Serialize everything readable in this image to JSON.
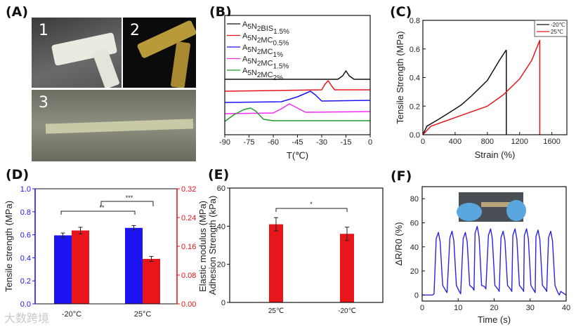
{
  "panel_labels": [
    "(A)",
    "(B)",
    "(C)",
    "(D)",
    "(E)",
    "(F)"
  ],
  "photos": {
    "numbers": [
      "1",
      "2",
      "3"
    ]
  },
  "watermark": "大数跨境",
  "colors": {
    "black": "#111111",
    "red": "#e8151b",
    "blue": "#1c14f0",
    "magenta": "#f02cf0",
    "green": "#1f9a2a",
    "dblue": "#2a23e0"
  },
  "chart_data": [
    {
      "id": "B",
      "type": "line",
      "title": "",
      "xlabel": "T(℃)",
      "ylabel": "",
      "xlim": [
        -90,
        0
      ],
      "ylim": [
        0,
        17
      ],
      "xticks": [
        -90,
        -75,
        -60,
        -45,
        -30,
        -15,
        0
      ],
      "legend_position": "top-left",
      "series": [
        {
          "name": "A5N2BIS1.5%",
          "base": "A5N2BIS",
          "sub": "1.5%",
          "color": "black",
          "points": [
            [
              -90,
              7.9
            ],
            [
              -20,
              7.9
            ],
            [
              -17,
              8.4
            ],
            [
              -15,
              9.1
            ],
            [
              -13,
              8.4
            ],
            [
              -10,
              7.9
            ],
            [
              0,
              7.9
            ]
          ]
        },
        {
          "name": "A5N2MC0.5%",
          "base": "A5N2MC",
          "sub": "0.5%",
          "color": "red",
          "points": [
            [
              -90,
              6.2
            ],
            [
              -30,
              6.4
            ],
            [
              -28,
              7.2
            ],
            [
              -26,
              7.7
            ],
            [
              -24,
              7.0
            ],
            [
              -22,
              6.4
            ],
            [
              0,
              6.4
            ]
          ]
        },
        {
          "name": "A5N2MC1%",
          "base": "A5N2MC",
          "sub": "1%",
          "color": "blue",
          "points": [
            [
              -90,
              4.6
            ],
            [
              -55,
              4.7
            ],
            [
              -45,
              5.4
            ],
            [
              -37,
              6.2
            ],
            [
              -34,
              5.7
            ],
            [
              -30,
              4.8
            ],
            [
              0,
              4.9
            ]
          ]
        },
        {
          "name": "A5N2MC1.5%",
          "base": "A5N2MC",
          "sub": "1.5%",
          "color": "magenta",
          "points": [
            [
              -90,
              3.0
            ],
            [
              -60,
              3.1
            ],
            [
              -55,
              3.7
            ],
            [
              -50,
              4.4
            ],
            [
              -45,
              3.8
            ],
            [
              -40,
              3.2
            ],
            [
              0,
              3.3
            ]
          ]
        },
        {
          "name": "A5N2MC2%",
          "base": "A5N2MC",
          "sub": "2%",
          "color": "green",
          "points": [
            [
              -90,
              1.9
            ],
            [
              -84,
              2.9
            ],
            [
              -78,
              3.6
            ],
            [
              -74,
              3.8
            ],
            [
              -71,
              3.4
            ],
            [
              -66,
              2.2
            ],
            [
              -60,
              2.0
            ],
            [
              0,
              2.0
            ]
          ]
        }
      ]
    },
    {
      "id": "C",
      "type": "line",
      "xlabel": "Strain (%)",
      "ylabel": "Tensile Strength (MPa)",
      "xlim": [
        0,
        1786
      ],
      "ylim": [
        0,
        0.8
      ],
      "xticks": [
        0,
        400,
        800,
        1200,
        1600
      ],
      "yticks": [
        0.0,
        0.2,
        0.4,
        0.6,
        0.8
      ],
      "legend_position": "top-right",
      "series": [
        {
          "name": "-20℃",
          "color": "black",
          "points": [
            [
              0,
              0
            ],
            [
              50,
              0.06
            ],
            [
              200,
              0.11
            ],
            [
              400,
              0.18
            ],
            [
              480,
              0.21
            ],
            [
              600,
              0.27
            ],
            [
              800,
              0.38
            ],
            [
              950,
              0.52
            ],
            [
              1030,
              0.59
            ],
            [
              1035,
              0.59
            ],
            [
              1035,
              0
            ]
          ]
        },
        {
          "name": "25℃",
          "color": "red",
          "points": [
            [
              0,
              0
            ],
            [
              100,
              0.06
            ],
            [
              400,
              0.12
            ],
            [
              800,
              0.2
            ],
            [
              1000,
              0.28
            ],
            [
              1200,
              0.39
            ],
            [
              1350,
              0.52
            ],
            [
              1450,
              0.66
            ],
            [
              1450,
              0
            ]
          ]
        }
      ]
    },
    {
      "id": "D",
      "type": "bar",
      "categories": [
        "-20°C",
        "25°C"
      ],
      "ylabel": "Tensile strength (MPa)",
      "ylabel_right": "Elastic modulus (MPa)",
      "ylim": [
        0,
        1.0
      ],
      "ylim_right": [
        0,
        0.32
      ],
      "yticks": [
        0.0,
        0.2,
        0.4,
        0.6,
        0.8,
        1.0
      ],
      "yticks_right": [
        0.0,
        0.08,
        0.16,
        0.24,
        0.32
      ],
      "series": [
        {
          "name": "Tensile strength",
          "color": "blue",
          "axis": "left",
          "values": [
            0.595,
            0.66
          ],
          "errors": [
            0.02,
            0.02
          ]
        },
        {
          "name": "Elastic modulus",
          "color": "red",
          "axis": "right",
          "values": [
            0.204,
            0.125
          ],
          "errors": [
            0.009,
            0.007
          ]
        }
      ],
      "significance": [
        {
          "label": "**",
          "between": "-20°C tensile vs 25°C tensile"
        },
        {
          "label": "***",
          "between": "-20°C modulus vs 25°C modulus"
        }
      ]
    },
    {
      "id": "E",
      "type": "bar",
      "categories": [
        "25℃",
        "-20℃"
      ],
      "ylabel": "Adhesion Strength (kPa)",
      "ylim": [
        0,
        60
      ],
      "yticks": [
        0,
        20,
        40,
        60
      ],
      "series": [
        {
          "name": "Adhesion Strength",
          "color": "red",
          "values": [
            41,
            36
          ],
          "errors": [
            3.5,
            3.5
          ]
        }
      ],
      "significance": [
        {
          "label": "*"
        }
      ]
    },
    {
      "id": "F",
      "type": "line",
      "xlabel": "Time (s)",
      "ylabel": "ΔR/R0 (%)",
      "xlim": [
        0,
        40
      ],
      "ylim": [
        -5,
        90
      ],
      "xticks": [
        0,
        10,
        20,
        30,
        40
      ],
      "yticks": [
        0,
        20,
        40,
        60,
        80
      ],
      "peaks_time": [
        4.5,
        8.3,
        12.0,
        15.3,
        19.0,
        22.5,
        25.8,
        29.0,
        32.2,
        35.7
      ],
      "peaks_value": [
        52,
        53,
        52,
        57,
        55,
        53,
        55,
        55,
        54,
        53
      ],
      "troughs_value": [
        2,
        1,
        4,
        5,
        3,
        3,
        3,
        2,
        3,
        0
      ],
      "color": "dblue"
    }
  ]
}
